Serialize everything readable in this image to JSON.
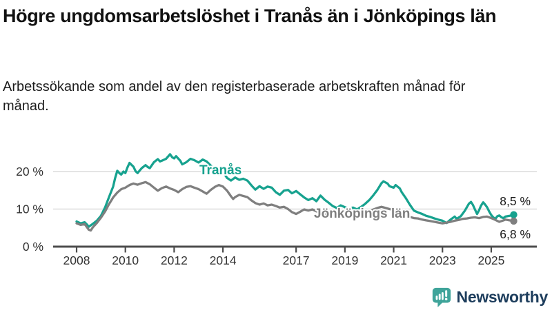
{
  "header": {
    "title": "Högre ungdomsarbetslöshet i Tranås än i Jönköpings län",
    "subtitle": "Arbetssökande som andel av den registerbaserade arbetskraften månad för månad."
  },
  "colors": {
    "accent_teal": "#17a28f",
    "series_gray": "#7f7f7f",
    "gridline": "#dcdcdc",
    "axis": "#4d4d4d",
    "tick_text": "#333333",
    "brand_navy": "#1d3d5c",
    "logo_teal": "#3fa49a"
  },
  "footer": {
    "brand": "Newsworthy"
  },
  "chart_data": {
    "type": "line",
    "title": "Högre ungdomsarbetslöshet i Tranås än i Jönköpings län",
    "subtitle": "Arbetssökande som andel av den registerbaserade arbetskraften månad för månad.",
    "grid": "horizontal-only",
    "legend_position": "inline-labels",
    "x_axis": {
      "range": [
        2007.0,
        2026.9
      ],
      "ticks": [
        {
          "year": 2008,
          "label": "2008"
        },
        {
          "year": 2010,
          "label": "2010"
        },
        {
          "year": 2012,
          "label": "2012"
        },
        {
          "year": 2014,
          "label": "2014"
        },
        {
          "year": 2017,
          "label": "2017"
        },
        {
          "year": 2019,
          "label": "2019"
        },
        {
          "year": 2021,
          "label": "2021"
        },
        {
          "year": 2023,
          "label": "2023"
        },
        {
          "year": 2025,
          "label": "2025"
        }
      ]
    },
    "y_axis": {
      "range": [
        0,
        27
      ],
      "unit": "%",
      "ticks": [
        {
          "value": 0,
          "label": "0 %"
        },
        {
          "value": 10,
          "label": "10 %"
        },
        {
          "value": 20,
          "label": "20 %"
        }
      ]
    },
    "series": [
      {
        "name": "Tranås",
        "color": "#17a28f",
        "end_label": "8,5 %",
        "end_value": 8.5,
        "points": [
          [
            2008.0,
            6.7
          ],
          [
            2008.17,
            6.2
          ],
          [
            2008.33,
            6.5
          ],
          [
            2008.42,
            5.9
          ],
          [
            2008.5,
            5.3
          ],
          [
            2008.67,
            6.1
          ],
          [
            2008.83,
            6.9
          ],
          [
            2009.0,
            8.2
          ],
          [
            2009.17,
            10.5
          ],
          [
            2009.33,
            13.2
          ],
          [
            2009.5,
            16.0
          ],
          [
            2009.58,
            18.3
          ],
          [
            2009.67,
            20.2
          ],
          [
            2009.75,
            19.6
          ],
          [
            2009.83,
            19.2
          ],
          [
            2009.92,
            20.0
          ],
          [
            2010.0,
            19.6
          ],
          [
            2010.08,
            21.0
          ],
          [
            2010.17,
            22.3
          ],
          [
            2010.33,
            21.3
          ],
          [
            2010.42,
            20.1
          ],
          [
            2010.5,
            19.6
          ],
          [
            2010.67,
            20.9
          ],
          [
            2010.83,
            21.7
          ],
          [
            2010.92,
            21.2
          ],
          [
            2011.0,
            20.9
          ],
          [
            2011.17,
            22.5
          ],
          [
            2011.33,
            23.3
          ],
          [
            2011.42,
            22.7
          ],
          [
            2011.5,
            22.9
          ],
          [
            2011.67,
            23.4
          ],
          [
            2011.83,
            24.6
          ],
          [
            2011.92,
            23.8
          ],
          [
            2012.0,
            23.5
          ],
          [
            2012.08,
            24.1
          ],
          [
            2012.25,
            22.9
          ],
          [
            2012.33,
            21.9
          ],
          [
            2012.5,
            22.5
          ],
          [
            2012.67,
            23.4
          ],
          [
            2012.83,
            23.0
          ],
          [
            2013.0,
            22.4
          ],
          [
            2013.17,
            23.2
          ],
          [
            2013.33,
            22.7
          ],
          [
            2013.5,
            21.6
          ],
          [
            2013.67,
            20.2
          ],
          [
            2013.83,
            19.2
          ],
          [
            2014.0,
            19.9
          ],
          [
            2014.17,
            18.3
          ],
          [
            2014.33,
            17.6
          ],
          [
            2014.5,
            18.4
          ],
          [
            2014.67,
            17.8
          ],
          [
            2014.83,
            18.1
          ],
          [
            2015.0,
            17.6
          ],
          [
            2015.17,
            16.3
          ],
          [
            2015.33,
            15.2
          ],
          [
            2015.5,
            16.1
          ],
          [
            2015.67,
            15.4
          ],
          [
            2015.83,
            16.0
          ],
          [
            2016.0,
            15.7
          ],
          [
            2016.17,
            14.5
          ],
          [
            2016.33,
            13.8
          ],
          [
            2016.5,
            14.9
          ],
          [
            2016.67,
            15.1
          ],
          [
            2016.83,
            14.2
          ],
          [
            2017.0,
            14.8
          ],
          [
            2017.17,
            13.9
          ],
          [
            2017.33,
            13.1
          ],
          [
            2017.5,
            12.4
          ],
          [
            2017.67,
            12.9
          ],
          [
            2017.83,
            12.1
          ],
          [
            2018.0,
            13.6
          ],
          [
            2018.17,
            12.5
          ],
          [
            2018.33,
            11.7
          ],
          [
            2018.5,
            10.8
          ],
          [
            2018.67,
            10.3
          ],
          [
            2018.83,
            11.0
          ],
          [
            2019.0,
            10.5
          ],
          [
            2019.17,
            10.1
          ],
          [
            2019.33,
            10.4
          ],
          [
            2019.5,
            9.9
          ],
          [
            2019.67,
            10.6
          ],
          [
            2019.83,
            11.4
          ],
          [
            2020.0,
            12.4
          ],
          [
            2020.17,
            13.7
          ],
          [
            2020.33,
            15.1
          ],
          [
            2020.5,
            16.9
          ],
          [
            2020.58,
            17.4
          ],
          [
            2020.75,
            16.8
          ],
          [
            2020.83,
            16.1
          ],
          [
            2021.0,
            15.7
          ],
          [
            2021.08,
            16.4
          ],
          [
            2021.25,
            15.5
          ],
          [
            2021.33,
            14.5
          ],
          [
            2021.5,
            12.9
          ],
          [
            2021.67,
            11.1
          ],
          [
            2021.83,
            9.6
          ],
          [
            2022.0,
            9.1
          ],
          [
            2022.17,
            8.7
          ],
          [
            2022.33,
            8.2
          ],
          [
            2022.5,
            7.9
          ],
          [
            2022.67,
            7.5
          ],
          [
            2022.83,
            7.2
          ],
          [
            2023.0,
            6.9
          ],
          [
            2023.17,
            6.3
          ],
          [
            2023.33,
            7.2
          ],
          [
            2023.5,
            8.0
          ],
          [
            2023.58,
            7.4
          ],
          [
            2023.75,
            8.1
          ],
          [
            2023.92,
            9.6
          ],
          [
            2024.0,
            10.5
          ],
          [
            2024.08,
            11.4
          ],
          [
            2024.17,
            11.9
          ],
          [
            2024.25,
            11.1
          ],
          [
            2024.33,
            9.9
          ],
          [
            2024.42,
            8.7
          ],
          [
            2024.5,
            9.7
          ],
          [
            2024.58,
            10.9
          ],
          [
            2024.67,
            11.8
          ],
          [
            2024.75,
            11.2
          ],
          [
            2024.83,
            10.5
          ],
          [
            2024.92,
            9.3
          ],
          [
            2025.0,
            8.4
          ],
          [
            2025.08,
            7.8
          ],
          [
            2025.17,
            7.4
          ],
          [
            2025.25,
            8.1
          ],
          [
            2025.33,
            8.3
          ],
          [
            2025.42,
            7.8
          ],
          [
            2025.5,
            7.6
          ],
          [
            2025.58,
            8.0
          ],
          [
            2025.75,
            8.2
          ],
          [
            2025.92,
            8.5
          ]
        ]
      },
      {
        "name": "Jönköpings län",
        "color": "#7f7f7f",
        "end_label": "6,8 %",
        "end_value": 6.8,
        "points": [
          [
            2008.0,
            6.2
          ],
          [
            2008.17,
            5.8
          ],
          [
            2008.33,
            6.0
          ],
          [
            2008.5,
            4.5
          ],
          [
            2008.58,
            4.3
          ],
          [
            2008.67,
            5.2
          ],
          [
            2008.83,
            6.3
          ],
          [
            2009.0,
            7.7
          ],
          [
            2009.17,
            9.4
          ],
          [
            2009.33,
            11.3
          ],
          [
            2009.5,
            13.1
          ],
          [
            2009.67,
            14.4
          ],
          [
            2009.83,
            15.3
          ],
          [
            2010.0,
            15.7
          ],
          [
            2010.17,
            16.4
          ],
          [
            2010.33,
            16.8
          ],
          [
            2010.5,
            16.5
          ],
          [
            2010.67,
            16.9
          ],
          [
            2010.83,
            17.2
          ],
          [
            2011.0,
            16.6
          ],
          [
            2011.17,
            15.7
          ],
          [
            2011.33,
            14.9
          ],
          [
            2011.5,
            15.6
          ],
          [
            2011.67,
            16.0
          ],
          [
            2011.83,
            15.5
          ],
          [
            2012.0,
            15.1
          ],
          [
            2012.17,
            14.5
          ],
          [
            2012.33,
            15.3
          ],
          [
            2012.5,
            15.9
          ],
          [
            2012.67,
            16.1
          ],
          [
            2012.83,
            15.7
          ],
          [
            2013.0,
            15.3
          ],
          [
            2013.17,
            14.7
          ],
          [
            2013.33,
            14.1
          ],
          [
            2013.5,
            15.1
          ],
          [
            2013.67,
            15.9
          ],
          [
            2013.83,
            16.4
          ],
          [
            2014.0,
            16.0
          ],
          [
            2014.17,
            14.9
          ],
          [
            2014.33,
            13.4
          ],
          [
            2014.42,
            12.7
          ],
          [
            2014.5,
            13.2
          ],
          [
            2014.67,
            13.8
          ],
          [
            2014.83,
            13.5
          ],
          [
            2015.0,
            13.2
          ],
          [
            2015.17,
            12.3
          ],
          [
            2015.33,
            11.6
          ],
          [
            2015.5,
            11.2
          ],
          [
            2015.67,
            11.5
          ],
          [
            2015.83,
            11.0
          ],
          [
            2016.0,
            11.2
          ],
          [
            2016.17,
            10.8
          ],
          [
            2016.33,
            10.4
          ],
          [
            2016.5,
            10.6
          ],
          [
            2016.67,
            10.0
          ],
          [
            2016.83,
            9.2
          ],
          [
            2017.0,
            8.7
          ],
          [
            2017.17,
            9.3
          ],
          [
            2017.33,
            9.9
          ],
          [
            2017.5,
            9.6
          ],
          [
            2017.67,
            9.9
          ],
          [
            2017.83,
            9.4
          ],
          [
            2018.0,
            9.1
          ],
          [
            2018.17,
            8.7
          ],
          [
            2018.33,
            8.2
          ],
          [
            2018.5,
            7.8
          ],
          [
            2018.67,
            8.2
          ],
          [
            2018.83,
            7.9
          ],
          [
            2019.0,
            8.3
          ],
          [
            2019.17,
            8.0
          ],
          [
            2019.33,
            8.4
          ],
          [
            2019.5,
            8.1
          ],
          [
            2019.67,
            8.5
          ],
          [
            2019.83,
            8.8
          ],
          [
            2020.0,
            9.3
          ],
          [
            2020.17,
            9.9
          ],
          [
            2020.33,
            10.3
          ],
          [
            2020.5,
            10.6
          ],
          [
            2020.67,
            10.3
          ],
          [
            2020.83,
            10.0
          ],
          [
            2021.0,
            9.8
          ],
          [
            2021.17,
            9.4
          ],
          [
            2021.33,
            9.0
          ],
          [
            2021.5,
            8.4
          ],
          [
            2021.67,
            7.9
          ],
          [
            2021.83,
            7.6
          ],
          [
            2022.0,
            7.5
          ],
          [
            2022.17,
            7.2
          ],
          [
            2022.33,
            7.0
          ],
          [
            2022.5,
            6.8
          ],
          [
            2022.67,
            6.6
          ],
          [
            2022.83,
            6.4
          ],
          [
            2023.0,
            6.2
          ],
          [
            2023.17,
            6.4
          ],
          [
            2023.33,
            6.6
          ],
          [
            2023.5,
            6.9
          ],
          [
            2023.67,
            7.1
          ],
          [
            2023.83,
            7.4
          ],
          [
            2024.0,
            7.5
          ],
          [
            2024.17,
            7.7
          ],
          [
            2024.33,
            7.8
          ],
          [
            2024.5,
            7.6
          ],
          [
            2024.67,
            7.9
          ],
          [
            2024.83,
            8.0
          ],
          [
            2025.0,
            7.6
          ],
          [
            2025.17,
            7.1
          ],
          [
            2025.33,
            6.6
          ],
          [
            2025.5,
            7.0
          ],
          [
            2025.58,
            7.2
          ],
          [
            2025.75,
            7.0
          ],
          [
            2025.92,
            6.8
          ]
        ]
      }
    ]
  }
}
